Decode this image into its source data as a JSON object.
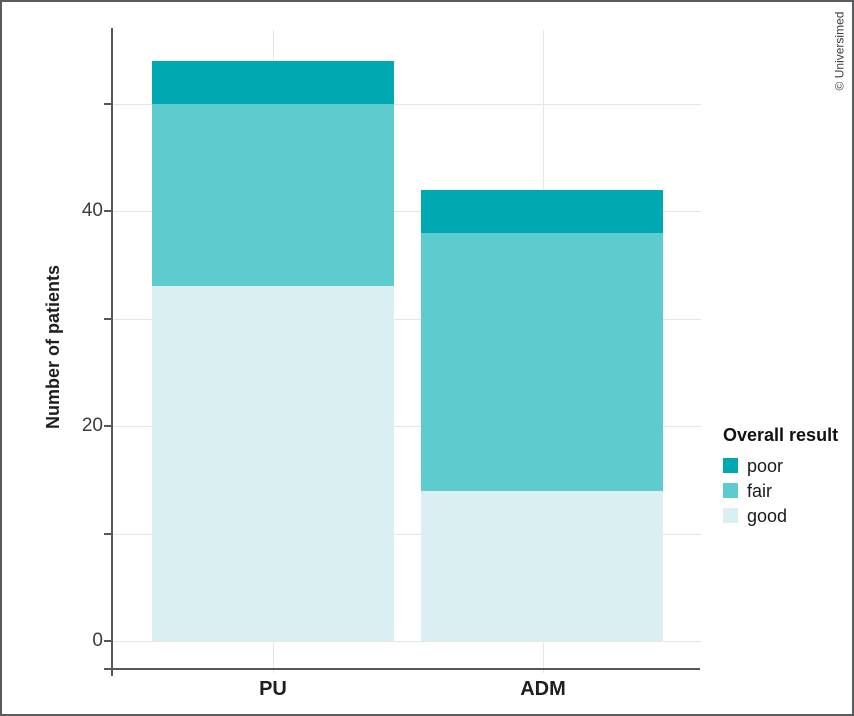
{
  "watermark": "© Universimed",
  "chart_data": {
    "type": "bar",
    "stacked": true,
    "title": "",
    "categories": [
      "PU",
      "ADM"
    ],
    "series": [
      {
        "name": "poor",
        "color": "#00a9b1",
        "values": [
          4,
          4
        ]
      },
      {
        "name": "fair",
        "color": "#5ecccf",
        "values": [
          17,
          24
        ]
      },
      {
        "name": "good",
        "color": "#d9eff1",
        "values": [
          33,
          14
        ]
      }
    ],
    "stack_order_bottom_to_top": [
      "good",
      "fair",
      "poor"
    ],
    "xlabel": "",
    "ylabel": "Number of patients",
    "ylim": [
      0,
      57
    ],
    "yticks_labeled": [
      0,
      20,
      40
    ],
    "yticks_minor": [
      10,
      30,
      50
    ],
    "grid": true,
    "legend": {
      "title": "Overall result",
      "position": "right",
      "entries": [
        "poor",
        "fair",
        "good"
      ]
    }
  },
  "styles": {
    "axis_color": "#55575a",
    "grid_color": "#e6e6e6",
    "tick_label_color": "#3c3c3c",
    "label_color": "#1f1f1f",
    "frame_border_color": "#595b5d",
    "background": "#ffffff"
  }
}
